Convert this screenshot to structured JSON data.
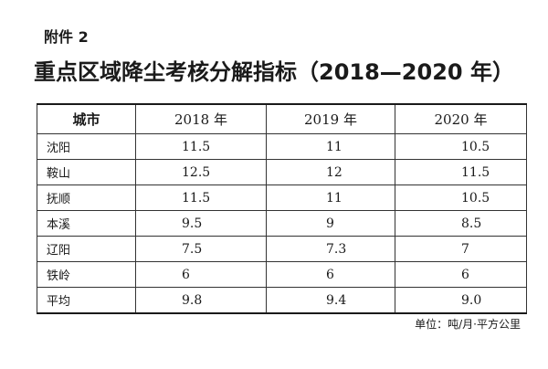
{
  "attachment_label": "附件 2",
  "title": "重点区域降尘考核分解指标（2018—2020 年）",
  "table": {
    "headers": [
      "城市",
      "2018 年",
      "2019 年",
      "2020 年"
    ],
    "rows": [
      [
        "沈阳",
        "11.5",
        "11",
        "10.5"
      ],
      [
        "鞍山",
        "12.5",
        "12",
        "11.5"
      ],
      [
        "抚顺",
        "11.5",
        "11",
        "10.5"
      ],
      [
        "本溪",
        "9.5",
        "9",
        "8.5"
      ],
      [
        "辽阳",
        "7.5",
        "7.3",
        "7"
      ],
      [
        "铁岭",
        "6",
        "6",
        "6"
      ],
      [
        "平均",
        "9.8",
        "9.4",
        "9.0"
      ]
    ]
  },
  "unit_note": "单位：吨/月·平方公里"
}
